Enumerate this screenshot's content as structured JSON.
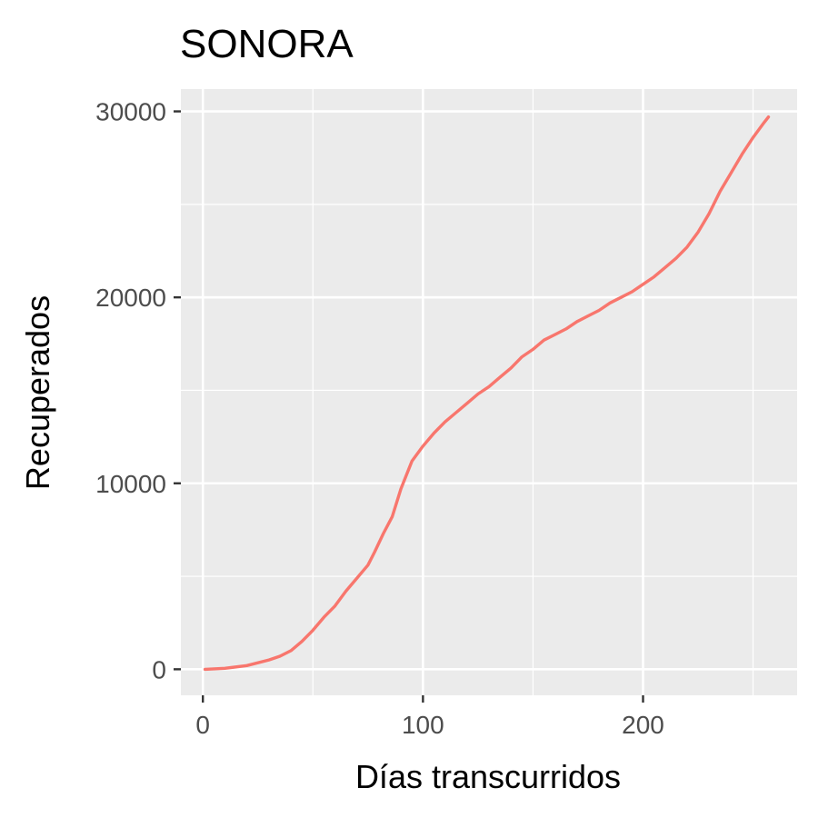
{
  "chart_data": {
    "type": "line",
    "title": "SONORA",
    "xlabel": "Días transcurridos",
    "ylabel": "Recuperados",
    "xlim": [
      -10,
      270
    ],
    "ylim": [
      -1400,
      31200
    ],
    "xticks": [
      0,
      100,
      200
    ],
    "xtick_labels": [
      "0",
      "100",
      "200"
    ],
    "yticks": [
      0,
      10000,
      20000,
      30000
    ],
    "ytick_labels": [
      "0",
      "10000",
      "20000",
      "30000"
    ],
    "x_minor": [
      50,
      150,
      250
    ],
    "y_minor": [
      5000,
      15000,
      25000
    ],
    "grid": true,
    "legend": "none",
    "colors": {
      "panel": "#EBEBEB",
      "grid": "#FFFFFF",
      "line": "#F8766D",
      "tick": "#333333"
    },
    "series": [
      {
        "name": "Recuperados",
        "x": [
          1,
          10,
          20,
          30,
          35,
          40,
          45,
          50,
          55,
          60,
          65,
          70,
          75,
          78,
          82,
          86,
          90,
          95,
          100,
          105,
          110,
          115,
          120,
          125,
          130,
          135,
          140,
          145,
          150,
          155,
          160,
          165,
          170,
          175,
          180,
          185,
          190,
          195,
          200,
          205,
          210,
          215,
          220,
          225,
          230,
          235,
          240,
          245,
          250,
          255,
          257
        ],
        "y": [
          0,
          50,
          200,
          500,
          700,
          1000,
          1500,
          2100,
          2800,
          3400,
          4200,
          4900,
          5600,
          6300,
          7300,
          8200,
          9700,
          11200,
          12000,
          12700,
          13300,
          13800,
          14300,
          14800,
          15200,
          15700,
          16200,
          16800,
          17200,
          17700,
          18000,
          18300,
          18700,
          19000,
          19300,
          19700,
          20000,
          20300,
          20700,
          21100,
          21600,
          22100,
          22700,
          23500,
          24500,
          25700,
          26700,
          27700,
          28600,
          29400,
          29700
        ]
      }
    ]
  }
}
